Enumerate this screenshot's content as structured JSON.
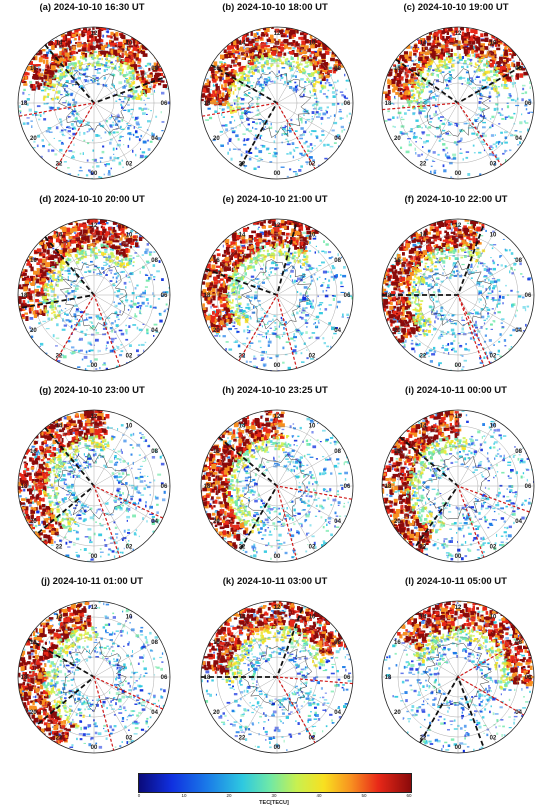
{
  "panels": [
    {
      "title": "(a) 2024-10-10 16:30 UT"
    },
    {
      "title": "(b) 2024-10-10 18:00 UT"
    },
    {
      "title": "(c) 2024-10-10 19:00 UT"
    },
    {
      "title": "(d) 2024-10-10 20:00 UT"
    },
    {
      "title": "(e) 2024-10-10 21:00 UT"
    },
    {
      "title": "(f) 2024-10-10 22:00 UT"
    },
    {
      "title": "(g) 2024-10-10 23:00 UT"
    },
    {
      "title": "(h) 2024-10-10 23:25 UT"
    },
    {
      "title": "(i) 2024-10-11 00:00 UT"
    },
    {
      "title": "(j) 2024-10-11 01:00 UT"
    },
    {
      "title": "(k) 2024-10-11 03:00 UT"
    },
    {
      "title": "(l) 2024-10-11 05:00 UT"
    }
  ],
  "hour_labels": [
    "12",
    "10",
    "08",
    "06",
    "04",
    "02",
    "00",
    "22",
    "20",
    "18",
    "16",
    "14"
  ],
  "colorbar": {
    "label": "TEC[TECU]",
    "ticks": [
      "0",
      "10",
      "20",
      "30",
      "40",
      "50",
      "60"
    ],
    "colors": [
      "#0a0a7a",
      "#1030e0",
      "#1a7ae8",
      "#2ec8e0",
      "#6ee8a8",
      "#c8f050",
      "#f8e020",
      "#f89020",
      "#e82818",
      "#8a0a0a"
    ]
  }
}
